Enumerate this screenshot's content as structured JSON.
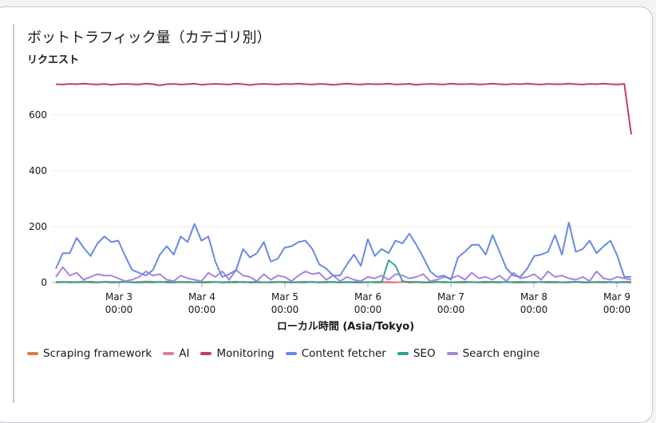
{
  "chart_data": {
    "type": "line",
    "title": "ボットトラフィック量（カテゴリ別）",
    "ylabel": "リクエスト",
    "xlabel": "ローカル時間 (Asia/Tokyo)",
    "ylim": [
      0,
      725
    ],
    "yticks": [
      0,
      200,
      400,
      600
    ],
    "xticks": [
      {
        "d": "Mar 3",
        "t": "00:00"
      },
      {
        "d": "Mar 4",
        "t": "00:00"
      },
      {
        "d": "Mar 5",
        "t": "00:00"
      },
      {
        "d": "Mar 6",
        "t": "00:00"
      },
      {
        "d": "Mar 7",
        "t": "00:00"
      },
      {
        "d": "Mar 8",
        "t": "00:00"
      },
      {
        "d": "Mar 9",
        "t": "00:00"
      }
    ],
    "x_start": "Mar 2 06:00",
    "x_interval_hours": 2,
    "grid": true,
    "legend": "bottom",
    "series": [
      {
        "name": "Scraping framework",
        "color": "#e07941",
        "values": [
          0,
          2,
          0,
          1,
          3,
          0,
          0,
          2,
          0,
          1,
          4,
          0,
          0,
          1,
          0,
          3,
          0,
          0,
          2,
          0,
          1,
          0,
          0,
          2,
          0,
          1,
          0,
          3,
          0,
          0,
          1,
          0,
          2,
          0,
          0,
          1,
          0,
          3,
          0,
          0,
          2,
          0,
          1,
          0,
          0,
          2,
          0,
          1,
          0,
          0,
          3,
          0,
          1,
          0,
          0,
          2,
          0,
          1,
          0,
          0,
          2,
          0,
          0,
          1,
          0,
          3,
          0,
          0,
          1,
          0,
          2,
          0,
          0,
          1,
          0,
          2,
          0,
          0,
          1,
          0,
          2,
          0,
          1,
          0
        ]
      },
      {
        "name": "AI",
        "color": "#e07f9d",
        "values": [
          2,
          3,
          1,
          2,
          4,
          2,
          1,
          3,
          2,
          2,
          3,
          1,
          2,
          4,
          3,
          2,
          1,
          2,
          3,
          2,
          1,
          2,
          3,
          2,
          1,
          3,
          2,
          1,
          2,
          3,
          1,
          2,
          3,
          2,
          1,
          2,
          3,
          2,
          1,
          2,
          3,
          1,
          2,
          2,
          3,
          1,
          2,
          3,
          2,
          1,
          2,
          3,
          2,
          1,
          2,
          3,
          2,
          1,
          2,
          3,
          2,
          1,
          2,
          3,
          2,
          1,
          2,
          3,
          2,
          1,
          2,
          3,
          2,
          1,
          2,
          3,
          2,
          1,
          2,
          3,
          2,
          1,
          2,
          3
        ]
      },
      {
        "name": "Monitoring",
        "color": "#c33d69",
        "values": [
          710,
          709,
          711,
          710,
          712,
          710,
          709,
          711,
          708,
          710,
          711,
          710,
          709,
          712,
          710,
          706,
          710,
          711,
          709,
          710,
          712,
          708,
          710,
          711,
          710,
          709,
          712,
          710,
          707,
          710,
          711,
          710,
          709,
          711,
          710,
          712,
          710,
          709,
          711,
          710,
          708,
          710,
          712,
          710,
          709,
          711,
          710,
          710,
          712,
          709,
          710,
          711,
          708,
          710,
          711,
          710,
          709,
          712,
          710,
          710,
          711,
          709,
          710,
          712,
          710,
          709,
          711,
          710,
          712,
          710,
          709,
          711,
          710,
          710,
          712,
          710,
          709,
          711,
          710,
          712,
          710,
          709,
          711,
          530
        ]
      },
      {
        "name": "Content fetcher",
        "color": "#688ae8",
        "values": [
          50,
          105,
          105,
          160,
          125,
          95,
          140,
          165,
          145,
          150,
          95,
          45,
          35,
          25,
          45,
          100,
          130,
          100,
          165,
          145,
          210,
          150,
          165,
          75,
          20,
          30,
          45,
          120,
          90,
          105,
          145,
          75,
          85,
          125,
          130,
          145,
          150,
          120,
          65,
          50,
          25,
          25,
          65,
          100,
          60,
          155,
          95,
          120,
          105,
          150,
          140,
          175,
          135,
          90,
          40,
          20,
          25,
          10,
          90,
          110,
          135,
          135,
          100,
          170,
          110,
          50,
          25,
          20,
          50,
          95,
          100,
          110,
          170,
          100,
          215,
          110,
          120,
          150,
          105,
          130,
          150,
          95,
          20,
          20
        ]
      },
      {
        "name": "SEO",
        "color": "#2ea597",
        "values": [
          1,
          1,
          2,
          1,
          1,
          3,
          1,
          2,
          1,
          1,
          2,
          1,
          1,
          1,
          2,
          1,
          3,
          1,
          1,
          2,
          1,
          1,
          1,
          2,
          1,
          1,
          3,
          1,
          1,
          2,
          1,
          1,
          1,
          2,
          1,
          1,
          2,
          1,
          1,
          3,
          1,
          1,
          2,
          1,
          1,
          1,
          2,
          1,
          80,
          60,
          5,
          1,
          2,
          1,
          1,
          1,
          2,
          1,
          1,
          2,
          1,
          1,
          3,
          1,
          1,
          2,
          1,
          1,
          1,
          2,
          1,
          1,
          2,
          1,
          1,
          3,
          1,
          1,
          2,
          1,
          1,
          1,
          2,
          1
        ]
      },
      {
        "name": "Search engine",
        "color": "#a783e1",
        "values": [
          20,
          55,
          25,
          35,
          10,
          20,
          30,
          25,
          25,
          15,
          5,
          10,
          20,
          40,
          25,
          30,
          10,
          5,
          25,
          15,
          10,
          5,
          35,
          20,
          40,
          10,
          45,
          25,
          20,
          5,
          30,
          10,
          25,
          20,
          5,
          25,
          40,
          30,
          35,
          10,
          25,
          5,
          20,
          10,
          5,
          20,
          15,
          25,
          10,
          30,
          25,
          15,
          20,
          30,
          5,
          10,
          20,
          15,
          25,
          10,
          35,
          15,
          20,
          10,
          25,
          5,
          35,
          15,
          20,
          30,
          10,
          40,
          20,
          25,
          15,
          10,
          20,
          5,
          40,
          15,
          10,
          20,
          15,
          10
        ]
      }
    ]
  }
}
